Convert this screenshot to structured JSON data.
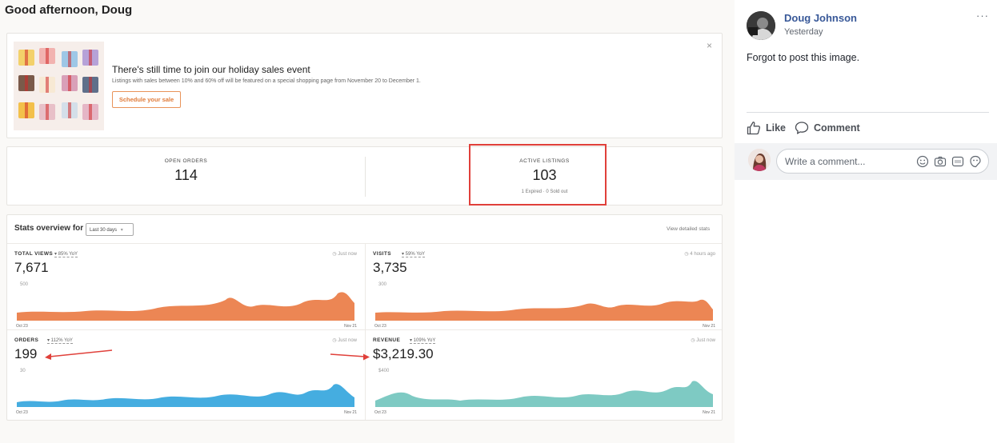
{
  "dashboard": {
    "greeting": "Good afternoon, Doug",
    "banner": {
      "title": "There's still time to join our holiday sales event",
      "subtitle": "Listings with sales between 10% and 60% off will be featured on a special shopping page from November 20 to December 1.",
      "button_label": "Schedule your sale",
      "close_glyph": "×"
    },
    "kpis": {
      "open_orders_label": "OPEN ORDERS",
      "open_orders_value": "114",
      "active_listings_label": "ACTIVE LISTINGS",
      "active_listings_value": "103",
      "active_listings_sub": "1 Expired · 0 Sold out"
    },
    "stats": {
      "title": "Stats overview for",
      "range_selected": "Last 30 days",
      "range_caret": "▾",
      "detail_link": "View detailed stats",
      "panels": [
        {
          "label": "TOTAL VIEWS",
          "yoy": "▾ 85% YoY",
          "time": "◷ Just now",
          "value": "7,671",
          "ytick": "500",
          "x_start": "Oct 23",
          "x_end": "Nov 21",
          "color": "#ec8654"
        },
        {
          "label": "VISITS",
          "yoy": "▾ 59% YoY",
          "time": "◷ 4 hours ago",
          "value": "3,735",
          "ytick": "300",
          "x_start": "Oct 23",
          "x_end": "Nov 21",
          "color": "#ec8654"
        },
        {
          "label": "ORDERS",
          "yoy": "▾ 112% YoY",
          "time": "◷ Just now",
          "value": "199",
          "ytick": "30",
          "x_start": "Oct 23",
          "x_end": "Nov 21",
          "color": "#45ade0"
        },
        {
          "label": "REVENUE",
          "yoy": "▾ 109% YoY",
          "time": "◷ Just now",
          "value": "$3,219.30",
          "ytick": "$400",
          "x_start": "Oct 23",
          "x_end": "Nov 21",
          "color": "#7ecac3"
        }
      ]
    },
    "annotation_color": "#e0403a"
  },
  "post": {
    "author": "Doug Johnson",
    "timestamp": "Yesterday",
    "more_glyph": "···",
    "text": "Forgot to post this image.",
    "like_label": "Like",
    "comment_label": "Comment",
    "comment_placeholder": "Write a comment...",
    "icons": [
      "emoji-icon",
      "camera-icon",
      "gif-icon",
      "sticker-icon"
    ]
  }
}
